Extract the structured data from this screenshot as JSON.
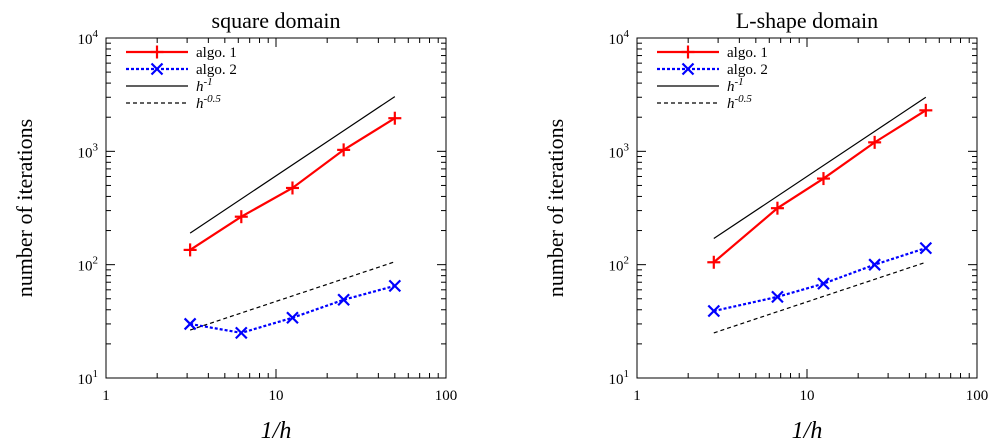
{
  "chart_data": [
    {
      "type": "line",
      "title": "square domain",
      "xlabel": "1/h",
      "ylabel": "number of iterations",
      "xscale": "log",
      "yscale": "log",
      "xlim": [
        1,
        100
      ],
      "ylim": [
        10,
        10000
      ],
      "xticks": [
        "1",
        "10",
        "100"
      ],
      "yticks": [
        {
          "base": "10",
          "exp": "1"
        },
        {
          "base": "10",
          "exp": "2"
        },
        {
          "base": "10",
          "exp": "3"
        },
        {
          "base": "10",
          "exp": "4"
        }
      ],
      "legend_position": "top-left",
      "series": [
        {
          "name": "algo. 1",
          "color": "#ff0000",
          "marker": "plus",
          "style": "solid",
          "x": [
            3.125,
            6.25,
            12.5,
            25,
            50
          ],
          "y": [
            135,
            265,
            475,
            1030,
            1960
          ]
        },
        {
          "name": "algo. 2",
          "color": "#0000ff",
          "marker": "cross",
          "style": "dotted",
          "x": [
            3.125,
            6.25,
            12.5,
            25,
            50
          ],
          "y": [
            30,
            25,
            34,
            49,
            65
          ]
        },
        {
          "name": "h^{-1}",
          "color": "#000000",
          "marker": "none",
          "style": "solid",
          "x": [
            3.125,
            50
          ],
          "y": [
            190,
            3040
          ]
        },
        {
          "name": "h^{-0.5}",
          "color": "#000000",
          "marker": "none",
          "style": "dashed",
          "x": [
            3.125,
            50
          ],
          "y": [
            26.5,
            106
          ]
        }
      ]
    },
    {
      "type": "line",
      "title": "L-shape domain",
      "xlabel": "1/h",
      "ylabel": "number of iterations",
      "xscale": "log",
      "yscale": "log",
      "xlim": [
        1,
        100
      ],
      "ylim": [
        10,
        10000
      ],
      "xticks": [
        "1",
        "10",
        "100"
      ],
      "yticks": [
        {
          "base": "10",
          "exp": "1"
        },
        {
          "base": "10",
          "exp": "2"
        },
        {
          "base": "10",
          "exp": "3"
        },
        {
          "base": "10",
          "exp": "4"
        }
      ],
      "legend_position": "top-left",
      "series": [
        {
          "name": "algo. 1",
          "color": "#ff0000",
          "marker": "plus",
          "style": "solid",
          "x": [
            2.83,
            6.7,
            12.5,
            25,
            50
          ],
          "y": [
            105,
            315,
            575,
            1200,
            2300
          ]
        },
        {
          "name": "algo. 2",
          "color": "#0000ff",
          "marker": "cross",
          "style": "dotted",
          "x": [
            2.83,
            6.7,
            12.5,
            25,
            50
          ],
          "y": [
            39,
            52,
            68,
            100,
            140
          ]
        },
        {
          "name": "h^{-1}",
          "color": "#000000",
          "marker": "none",
          "style": "solid",
          "x": [
            2.83,
            50
          ],
          "y": [
            170,
            3000
          ]
        },
        {
          "name": "h^{-0.5}",
          "color": "#000000",
          "marker": "none",
          "style": "dashed",
          "x": [
            2.83,
            50
          ],
          "y": [
            25,
            105
          ]
        }
      ]
    }
  ]
}
